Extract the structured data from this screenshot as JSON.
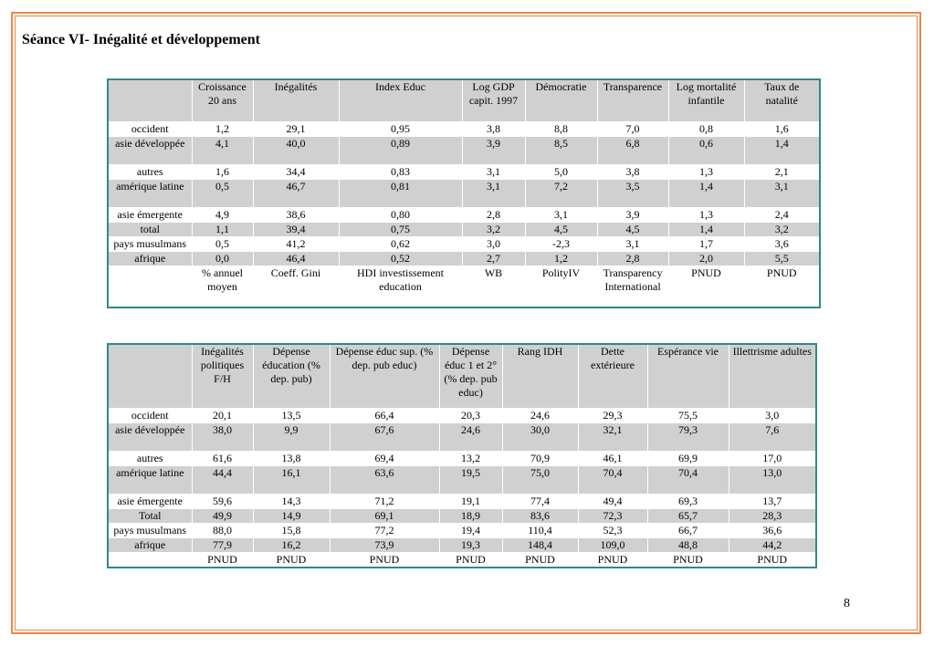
{
  "page": {
    "title": "Séance VI- Inégalité et développement",
    "page_number": "8"
  },
  "table1": {
    "headers": [
      "",
      "Croissance 20 ans",
      "Inégalités",
      "Index Educ",
      "Log GDP capit. 1997",
      "Démocratie",
      "Transparence",
      "Log mortalité infantile",
      "Taux de natalité"
    ],
    "rows": [
      [
        "occident",
        "1,2",
        "29,1",
        "0,95",
        "3,8",
        "8,8",
        "7,0",
        "0,8",
        "1,6"
      ],
      [
        "asie développée",
        "4,1",
        "40,0",
        "0,89",
        "3,9",
        "8,5",
        "6,8",
        "0,6",
        "1,4"
      ],
      [
        "autres",
        "1,6",
        "34,4",
        "0,83",
        "3,1",
        "5,0",
        "3,8",
        "1,3",
        "2,1"
      ],
      [
        "amérique latine",
        "0,5",
        "46,7",
        "0,81",
        "3,1",
        "7,2",
        "3,5",
        "1,4",
        "3,1"
      ],
      [
        "asie émergente",
        "4,9",
        "38,6",
        "0,80",
        "2,8",
        "3,1",
        "3,9",
        "1,3",
        "2,4"
      ],
      [
        "total",
        "1,1",
        "39,4",
        "0,75",
        "3,2",
        "4,5",
        "4,5",
        "1,4",
        "3,2"
      ],
      [
        "pays musulmans",
        "0,5",
        "41,2",
        "0,62",
        "3,0",
        "-2,3",
        "3,1",
        "1,7",
        "3,6"
      ],
      [
        "afrique",
        "0,0",
        "46,4",
        "0,52",
        "2,7",
        "1,2",
        "2,8",
        "2,0",
        "5,5"
      ]
    ],
    "sources": [
      "",
      "% annuel moyen",
      "Coeff. Gini",
      "HDI investissement education",
      "WB",
      "PolityIV",
      "Transparency International",
      "PNUD",
      "PNUD"
    ]
  },
  "table2": {
    "headers": [
      "",
      "Inégalités politiques F/H",
      "Dépense éducation (% dep. pub)",
      "Dépense éduc sup. (% dep. pub educ)",
      "Dépense éduc 1 et 2° (% dep. pub educ)",
      "Rang IDH",
      "Dette extérieure",
      "Espérance vie",
      "Illettrisme adultes"
    ],
    "rows": [
      [
        "occident",
        "20,1",
        "13,5",
        "66,4",
        "20,3",
        "24,6",
        "29,3",
        "75,5",
        "3,0"
      ],
      [
        "asie développée",
        "38,0",
        "9,9",
        "67,6",
        "24,6",
        "30,0",
        "32,1",
        "79,3",
        "7,6"
      ],
      [
        "autres",
        "61,6",
        "13,8",
        "69,4",
        "13,2",
        "70,9",
        "46,1",
        "69,9",
        "17,0"
      ],
      [
        "amérique latine",
        "44,4",
        "16,1",
        "63,6",
        "19,5",
        "75,0",
        "70,4",
        "70,4",
        "13,0"
      ],
      [
        "asie émergente",
        "59,6",
        "14,3",
        "71,2",
        "19,1",
        "77,4",
        "49,4",
        "69,3",
        "13,7"
      ],
      [
        "Total",
        "49,9",
        "14,9",
        "69,1",
        "18,9",
        "83,6",
        "72,3",
        "65,7",
        "28,3"
      ],
      [
        "pays musulmans",
        "88,0",
        "15,8",
        "77,2",
        "19,4",
        "110,4",
        "52,3",
        "66,7",
        "36,6"
      ],
      [
        "afrique",
        "77,9",
        "16,2",
        "73,9",
        "19,3",
        "148,4",
        "109,0",
        "48,8",
        "44,2"
      ]
    ],
    "sources": [
      "",
      "PNUD",
      "PNUD",
      "PNUD",
      "PNUD",
      "PNUD",
      "PNUD",
      "PNUD",
      "PNUD"
    ]
  }
}
